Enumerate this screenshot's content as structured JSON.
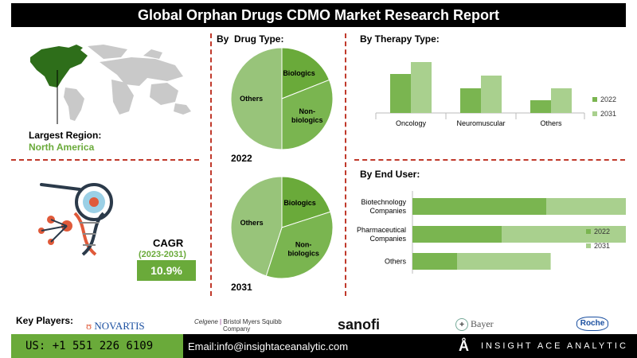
{
  "header": {
    "title": "Global Orphan Drugs CDMO Market Research Report"
  },
  "region": {
    "label": "Largest Region:",
    "value": "North America"
  },
  "cagr": {
    "label": "CAGR",
    "period": "(2023-2031)",
    "value": "10.9%"
  },
  "key_players": {
    "label": "Key Players:",
    "logos": [
      "NOVARTIS",
      "Celgene",
      "Bristol Myers Squibb",
      "Company",
      "sanofi",
      "Bayer",
      "Roche"
    ]
  },
  "footer": {
    "phone": "US: +1 551 226 6109",
    "email": "Email:info@insightaceanalytic.com",
    "brand": "INSIGHT ACE ANALYTIC"
  },
  "colors": {
    "dark_green": "#6aaa3a",
    "mid_green": "#7ab550",
    "light_green": "#a9d08e",
    "pie_light": "#98c47a",
    "accent_red": "#c0392b"
  },
  "chart_data": [
    {
      "type": "pie",
      "title": "By  Drug Type:",
      "year": "2022",
      "labels": [
        "Biologics",
        "Non-biologics",
        "Others"
      ],
      "values": [
        19,
        31,
        50
      ]
    },
    {
      "type": "pie",
      "year": "2031",
      "labels": [
        "Biologics",
        "Non-biologics",
        "Others"
      ],
      "values": [
        20,
        35,
        45
      ]
    },
    {
      "type": "bar",
      "title": "By Therapy Type:",
      "categories": [
        "Oncology",
        "Neuromuscular",
        "Others"
      ],
      "series": [
        {
          "name": "2022",
          "values": [
            49,
            31,
            16
          ]
        },
        {
          "name": "2031",
          "values": [
            64,
            47,
            31
          ]
        }
      ],
      "ylim": [
        0,
        70
      ],
      "legend": "right"
    },
    {
      "type": "bar",
      "orientation": "horizontal",
      "title": "By End User:",
      "categories": [
        "Biotechnology Companies",
        "Pharmaceutical Companies",
        "Others"
      ],
      "series": [
        {
          "name": "2022",
          "values": [
            60,
            40,
            20
          ]
        },
        {
          "name": "2031",
          "values": [
            82,
            62,
            42
          ]
        }
      ],
      "stacked": true,
      "legend": "right"
    }
  ]
}
